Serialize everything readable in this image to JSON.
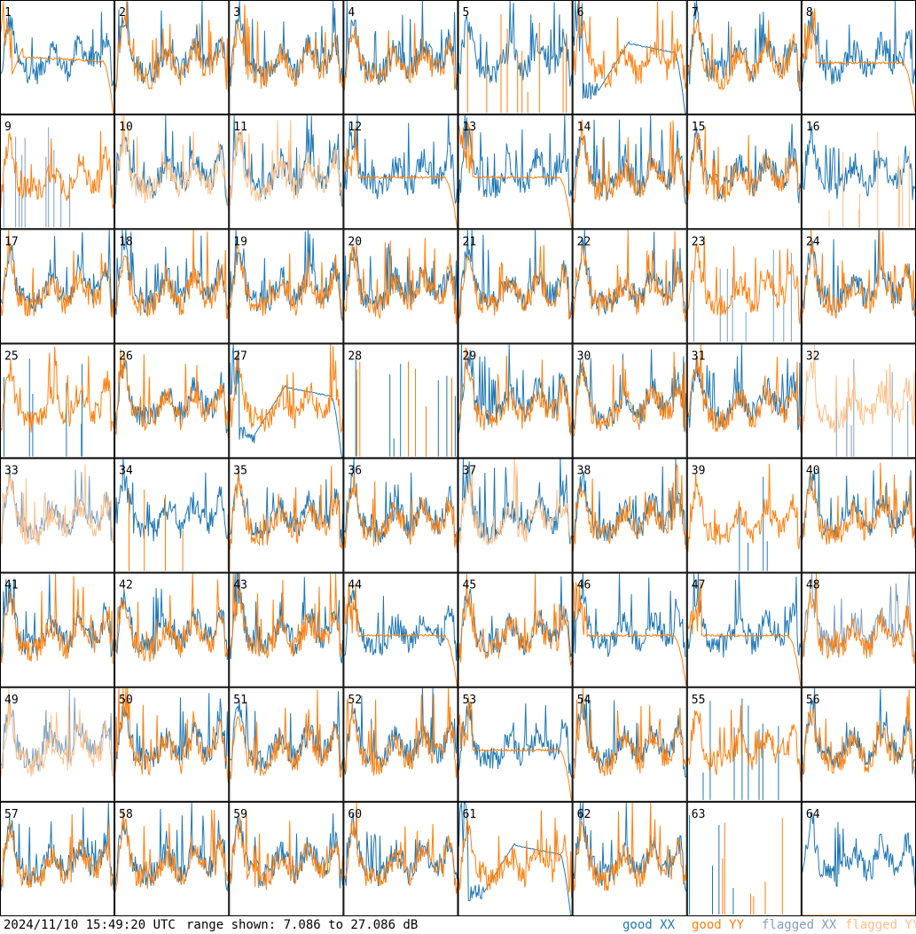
{
  "timestamp": "2024/11/10 15:49:20 UTC",
  "range_text": "range shown: 7.086 to 27.086 dB",
  "legend": [
    {
      "key": "good_xx",
      "label": "good XX",
      "color": "#1f77b4"
    },
    {
      "key": "good_yy",
      "label": "good YY",
      "color": "#ff7f0e"
    },
    {
      "key": "flagged_xx",
      "label": "flagged XX",
      "color": "#7f9fbd"
    },
    {
      "key": "flagged_yy",
      "label": "flagged YY",
      "color": "#ffbf87"
    }
  ],
  "chart_data": {
    "type": "line",
    "layout": "8x8 small multiples, one panel per antenna",
    "yrange_db": [
      7.086,
      27.086
    ],
    "panels": [
      {
        "id": "1",
        "xx": "good",
        "yy": "good",
        "xx_shape": "spectrum",
        "yy_shape": "decay"
      },
      {
        "id": "2",
        "xx": "good",
        "yy": "good",
        "xx_shape": "spectrum",
        "yy_shape": "spectrum"
      },
      {
        "id": "3",
        "xx": "good",
        "yy": "good",
        "xx_shape": "spectrum",
        "yy_shape": "spectrum"
      },
      {
        "id": "4",
        "xx": "good",
        "yy": "good",
        "xx_shape": "spectrum",
        "yy_shape": "spectrum"
      },
      {
        "id": "5",
        "xx": "good",
        "yy": "good",
        "xx_shape": "spectrum",
        "yy_shape": "spikes"
      },
      {
        "id": "6",
        "xx": "good",
        "yy": "good",
        "xx_shape": "dip",
        "yy_shape": "spectrum"
      },
      {
        "id": "7",
        "xx": "good",
        "yy": "good",
        "xx_shape": "spectrum",
        "yy_shape": "spectrum"
      },
      {
        "id": "8",
        "xx": "good",
        "yy": "good",
        "xx_shape": "spectrum",
        "yy_shape": "plateau"
      },
      {
        "id": "9",
        "xx": "flagged",
        "yy": "good",
        "xx_shape": "spikes",
        "yy_shape": "spectrum"
      },
      {
        "id": "10",
        "xx": "good",
        "yy": "flagged",
        "xx_shape": "spectrum",
        "yy_shape": "spectrum"
      },
      {
        "id": "11",
        "xx": "good",
        "yy": "flagged",
        "xx_shape": "spectrum",
        "yy_shape": "spectrum"
      },
      {
        "id": "12",
        "xx": "good",
        "yy": "good",
        "xx_shape": "spectrum",
        "yy_shape": "plateau"
      },
      {
        "id": "13",
        "xx": "good",
        "yy": "good",
        "xx_shape": "spectrum",
        "yy_shape": "plateau"
      },
      {
        "id": "14",
        "xx": "good",
        "yy": "good",
        "xx_shape": "spectrum",
        "yy_shape": "spectrum"
      },
      {
        "id": "15",
        "xx": "good",
        "yy": "good",
        "xx_shape": "spectrum",
        "yy_shape": "spectrum"
      },
      {
        "id": "16",
        "xx": "good",
        "yy": "flagged",
        "xx_shape": "spectrum",
        "yy_shape": "spikes"
      },
      {
        "id": "17",
        "xx": "good",
        "yy": "good",
        "xx_shape": "spectrum",
        "yy_shape": "spectrum"
      },
      {
        "id": "18",
        "xx": "good",
        "yy": "good",
        "xx_shape": "spectrum",
        "yy_shape": "spectrum"
      },
      {
        "id": "19",
        "xx": "good",
        "yy": "good",
        "xx_shape": "spectrum",
        "yy_shape": "spectrum"
      },
      {
        "id": "20",
        "xx": "good",
        "yy": "good",
        "xx_shape": "spectrum",
        "yy_shape": "spectrum"
      },
      {
        "id": "21",
        "xx": "good",
        "yy": "good",
        "xx_shape": "spectrum",
        "yy_shape": "spectrum"
      },
      {
        "id": "22",
        "xx": "good",
        "yy": "good",
        "xx_shape": "spectrum",
        "yy_shape": "spectrum"
      },
      {
        "id": "23",
        "xx": "flagged",
        "yy": "good",
        "xx_shape": "spikes",
        "yy_shape": "spectrum"
      },
      {
        "id": "24",
        "xx": "good",
        "yy": "good",
        "xx_shape": "spectrum",
        "yy_shape": "spectrum"
      },
      {
        "id": "25",
        "xx": "good",
        "yy": "good",
        "xx_shape": "spikes",
        "yy_shape": "spectrum"
      },
      {
        "id": "26",
        "xx": "good",
        "yy": "good",
        "xx_shape": "spectrum",
        "yy_shape": "spectrum"
      },
      {
        "id": "27",
        "xx": "good",
        "yy": "good",
        "xx_shape": "dip",
        "yy_shape": "spectrum"
      },
      {
        "id": "28",
        "xx": "good",
        "yy": "good",
        "xx_shape": "spikes",
        "yy_shape": "spikes"
      },
      {
        "id": "29",
        "xx": "good",
        "yy": "good",
        "xx_shape": "spectrum",
        "yy_shape": "spectrum"
      },
      {
        "id": "30",
        "xx": "good",
        "yy": "good",
        "xx_shape": "spectrum",
        "yy_shape": "spectrum"
      },
      {
        "id": "31",
        "xx": "good",
        "yy": "good",
        "xx_shape": "spectrum",
        "yy_shape": "spectrum"
      },
      {
        "id": "32",
        "xx": "flagged",
        "yy": "flagged",
        "xx_shape": "spikes",
        "yy_shape": "spectrum"
      },
      {
        "id": "33",
        "xx": "flagged",
        "yy": "flagged",
        "xx_shape": "spectrum",
        "yy_shape": "spectrum"
      },
      {
        "id": "34",
        "xx": "good",
        "yy": "good",
        "xx_shape": "spectrum",
        "yy_shape": "spikes"
      },
      {
        "id": "35",
        "xx": "good",
        "yy": "good",
        "xx_shape": "spectrum",
        "yy_shape": "spectrum"
      },
      {
        "id": "36",
        "xx": "good",
        "yy": "good",
        "xx_shape": "spectrum",
        "yy_shape": "spectrum"
      },
      {
        "id": "37",
        "xx": "good",
        "yy": "flagged",
        "xx_shape": "spectrum",
        "yy_shape": "spectrum"
      },
      {
        "id": "38",
        "xx": "good",
        "yy": "good",
        "xx_shape": "spectrum",
        "yy_shape": "spectrum"
      },
      {
        "id": "39",
        "xx": "good",
        "yy": "good",
        "xx_shape": "spikes",
        "yy_shape": "spectrum"
      },
      {
        "id": "40",
        "xx": "good",
        "yy": "good",
        "xx_shape": "spectrum",
        "yy_shape": "spectrum"
      },
      {
        "id": "41",
        "xx": "good",
        "yy": "good",
        "xx_shape": "spectrum",
        "yy_shape": "spectrum"
      },
      {
        "id": "42",
        "xx": "good",
        "yy": "good",
        "xx_shape": "spectrum",
        "yy_shape": "spectrum"
      },
      {
        "id": "43",
        "xx": "good",
        "yy": "good",
        "xx_shape": "spectrum",
        "yy_shape": "spectrum"
      },
      {
        "id": "44",
        "xx": "good",
        "yy": "good",
        "xx_shape": "spectrum",
        "yy_shape": "plateau"
      },
      {
        "id": "45",
        "xx": "good",
        "yy": "good",
        "xx_shape": "spectrum",
        "yy_shape": "spectrum"
      },
      {
        "id": "46",
        "xx": "good",
        "yy": "good",
        "xx_shape": "spectrum",
        "yy_shape": "plateau"
      },
      {
        "id": "47",
        "xx": "good",
        "yy": "good",
        "xx_shape": "spectrum",
        "yy_shape": "plateau"
      },
      {
        "id": "48",
        "xx": "flagged",
        "yy": "good",
        "xx_shape": "spectrum",
        "yy_shape": "spectrum"
      },
      {
        "id": "49",
        "xx": "flagged",
        "yy": "flagged",
        "xx_shape": "spectrum",
        "yy_shape": "spectrum"
      },
      {
        "id": "50",
        "xx": "good",
        "yy": "good",
        "xx_shape": "spectrum",
        "yy_shape": "spectrum"
      },
      {
        "id": "51",
        "xx": "good",
        "yy": "good",
        "xx_shape": "spectrum",
        "yy_shape": "spectrum"
      },
      {
        "id": "52",
        "xx": "good",
        "yy": "good",
        "xx_shape": "spectrum",
        "yy_shape": "spectrum"
      },
      {
        "id": "53",
        "xx": "good",
        "yy": "good",
        "xx_shape": "spectrum",
        "yy_shape": "plateau"
      },
      {
        "id": "54",
        "xx": "good",
        "yy": "good",
        "xx_shape": "spectrum",
        "yy_shape": "spectrum"
      },
      {
        "id": "55",
        "xx": "good",
        "yy": "good",
        "xx_shape": "spikes",
        "yy_shape": "spectrum"
      },
      {
        "id": "56",
        "xx": "good",
        "yy": "good",
        "xx_shape": "spectrum",
        "yy_shape": "spectrum"
      },
      {
        "id": "57",
        "xx": "good",
        "yy": "good",
        "xx_shape": "spectrum",
        "yy_shape": "spectrum"
      },
      {
        "id": "58",
        "xx": "good",
        "yy": "good",
        "xx_shape": "spectrum",
        "yy_shape": "spectrum"
      },
      {
        "id": "59",
        "xx": "good",
        "yy": "good",
        "xx_shape": "spectrum",
        "yy_shape": "spectrum"
      },
      {
        "id": "60",
        "xx": "good",
        "yy": "good",
        "xx_shape": "spectrum",
        "yy_shape": "spectrum"
      },
      {
        "id": "61",
        "xx": "good",
        "yy": "good",
        "xx_shape": "dip",
        "yy_shape": "spectrum"
      },
      {
        "id": "62",
        "xx": "good",
        "yy": "good",
        "xx_shape": "spectrum",
        "yy_shape": "spectrum"
      },
      {
        "id": "63",
        "xx": "good",
        "yy": "good",
        "xx_shape": "spikes",
        "yy_shape": "spikes"
      },
      {
        "id": "64",
        "xx": "good",
        "yy": "flagged",
        "xx_shape": "spectrum",
        "yy_shape": "flat"
      }
    ]
  }
}
